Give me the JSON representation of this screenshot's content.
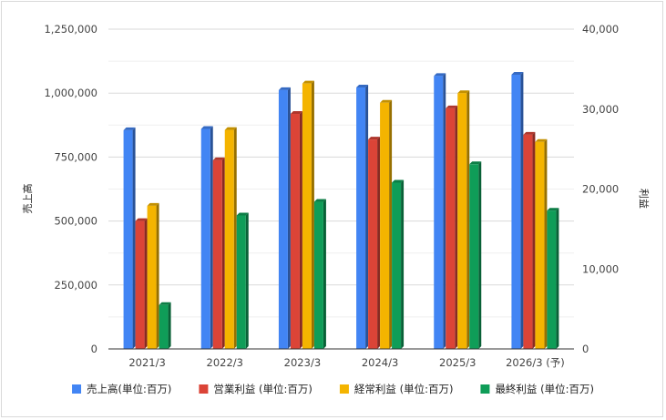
{
  "chart_data": {
    "type": "bar",
    "categories": [
      "2021/3",
      "2022/3",
      "2023/3",
      "2024/3",
      "2025/3",
      "2026/3 (予)"
    ],
    "series": [
      {
        "name": "売上高(単位:百万)",
        "axis": "left",
        "color": "#4285f4",
        "values": [
          855000,
          860000,
          1012000,
          1022000,
          1067000,
          1072000
        ]
      },
      {
        "name": "営業利益 (単位:百万)",
        "axis": "right",
        "color": "#db4437",
        "values": [
          16000,
          23600,
          29400,
          26200,
          30100,
          26800
        ]
      },
      {
        "name": "経常利益 (単位:百万)",
        "axis": "right",
        "color": "#f4b400",
        "values": [
          17900,
          27400,
          33200,
          30800,
          32000,
          25900
        ]
      },
      {
        "name": "最終利益 (単位:百万)",
        "axis": "right",
        "color": "#0f9d58",
        "values": [
          5500,
          16700,
          18400,
          20800,
          23100,
          17300
        ]
      }
    ],
    "ylabel_left": "売上高",
    "ylabel_right": "利益",
    "ylim_left": [
      0,
      1250000
    ],
    "ylim_right": [
      0,
      40000
    ],
    "yticks_left": [
      "0",
      "250,000",
      "500,000",
      "750,000",
      "1,000,000",
      "1,250,000"
    ],
    "yticks_right": [
      "0",
      "10,000",
      "20,000",
      "30,000",
      "40,000"
    ],
    "grid": true,
    "legend_position": "bottom"
  }
}
